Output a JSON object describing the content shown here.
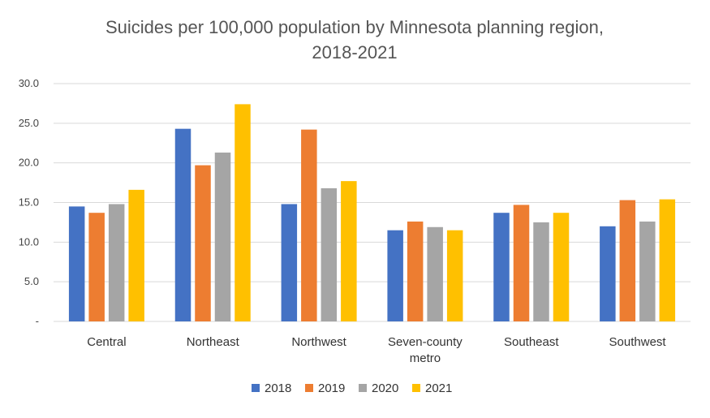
{
  "chart_data": {
    "type": "bar",
    "title": "Suicides per 100,000 population by Minnesota planning region, 2018-2021",
    "title_lines": [
      "Suicides per 100,000 population by Minnesota planning region,",
      "2018-2021"
    ],
    "xlabel": "",
    "ylabel": "",
    "ylim": [
      0,
      30
    ],
    "yticks": [
      0,
      5,
      10,
      15,
      20,
      25,
      30
    ],
    "ytick_labels": [
      "-",
      "5.0",
      "10.0",
      "15.0",
      "20.0",
      "25.0",
      "30.0"
    ],
    "grid": true,
    "legend_position": "bottom",
    "categories": [
      [
        "Central"
      ],
      [
        "Northeast"
      ],
      [
        "Northwest"
      ],
      [
        "Seven-county",
        "metro"
      ],
      [
        "Southeast"
      ],
      [
        "Southwest"
      ]
    ],
    "series": [
      {
        "name": "2018",
        "color": "#4472C4",
        "values": [
          14.5,
          24.3,
          14.8,
          11.5,
          13.7,
          12.0
        ]
      },
      {
        "name": "2019",
        "color": "#ED7D31",
        "values": [
          13.7,
          19.7,
          24.2,
          12.6,
          14.7,
          15.3
        ]
      },
      {
        "name": "2020",
        "color": "#A5A5A5",
        "values": [
          14.8,
          21.3,
          16.8,
          11.9,
          12.5,
          12.6
        ]
      },
      {
        "name": "2021",
        "color": "#FFC000",
        "values": [
          16.6,
          27.4,
          17.7,
          11.5,
          13.7,
          15.4
        ]
      }
    ]
  }
}
